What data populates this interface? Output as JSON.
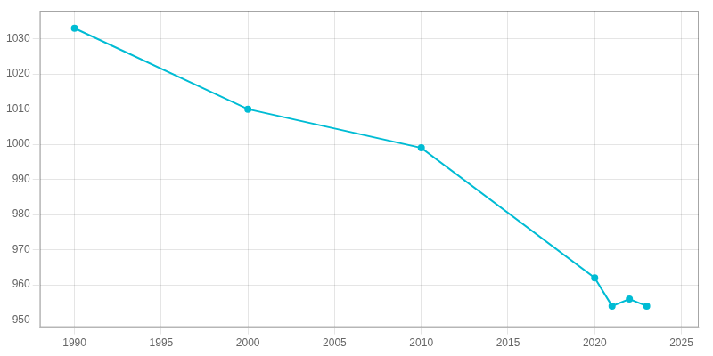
{
  "chart_data": {
    "type": "line",
    "x": [
      1990,
      2000,
      2010,
      2020,
      2021,
      2022,
      2023
    ],
    "values": [
      1033,
      1010,
      999,
      962,
      954,
      956,
      954
    ],
    "color": "#00BCD4",
    "xlim": [
      1988,
      2026
    ],
    "xticks": [
      1990,
      1995,
      2000,
      2005,
      2010,
      2015,
      2020,
      2025
    ],
    "ylim": [
      948,
      1038
    ],
    "yticks": [
      950,
      960,
      970,
      980,
      990,
      1000,
      1010,
      1020,
      1030
    ],
    "grid": true
  }
}
